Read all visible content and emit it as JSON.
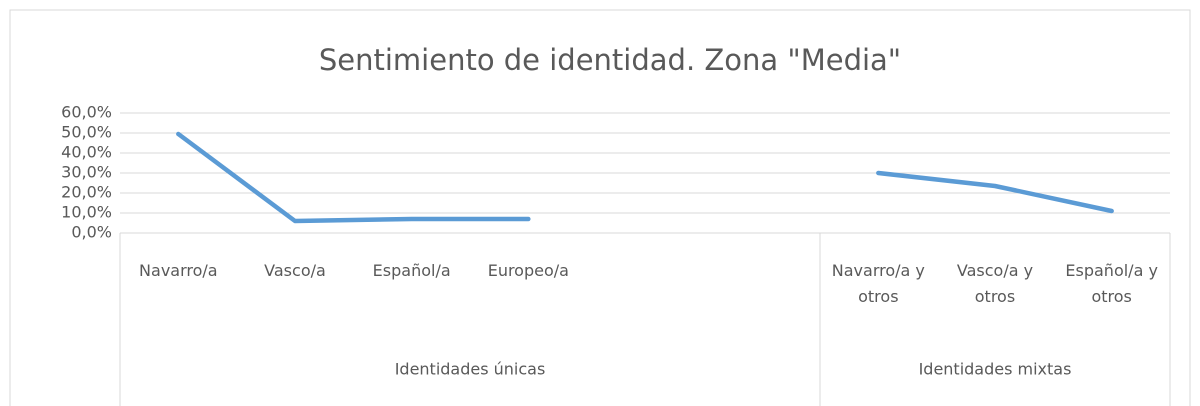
{
  "chart_data": {
    "type": "line",
    "title": "Sentimiento de identidad. Zona \"Media\"",
    "groups": [
      {
        "name": "Identidades únicas",
        "categories": [
          "Navarro/a",
          "Vasco/a",
          "Español/a",
          "Europeo/a",
          null,
          null
        ]
      },
      {
        "name": "Identidades mixtas",
        "categories": [
          "Navarro/a y otros",
          "Vasco/a y otros",
          "Español/a y otros"
        ]
      }
    ],
    "series": [
      {
        "name": "Zona Media",
        "color": "#5b9bd5",
        "values": [
          49.5,
          6,
          7,
          7,
          null,
          null,
          30,
          23.5,
          11
        ]
      }
    ],
    "ylim": [
      0,
      60
    ],
    "yticks": [
      {
        "value": 0,
        "label": "0,0%"
      },
      {
        "value": 10,
        "label": "10,0%"
      },
      {
        "value": 20,
        "label": "20,0%"
      },
      {
        "value": 30,
        "label": "30,0%"
      },
      {
        "value": 40,
        "label": "40,0%"
      },
      {
        "value": 50,
        "label": "50,0%"
      },
      {
        "value": 60,
        "label": "60,0%"
      }
    ],
    "grid": true
  }
}
